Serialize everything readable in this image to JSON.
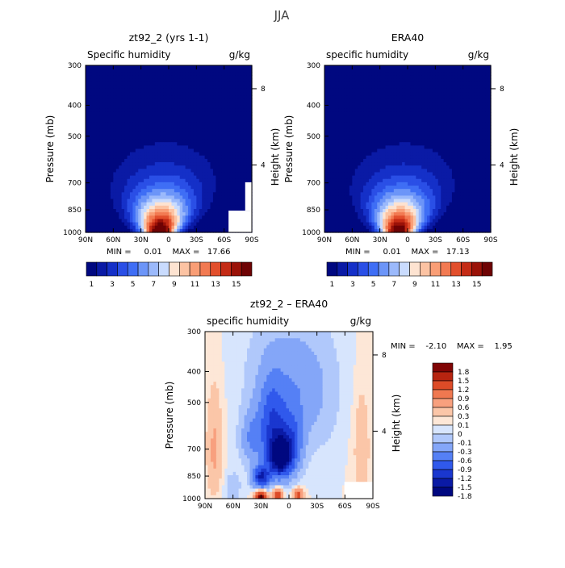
{
  "page": {
    "title": "JJA"
  },
  "colors": {
    "full_scale": [
      "#000880",
      "#0a1aa5",
      "#1530c8",
      "#2a4fe6",
      "#3f6ef5",
      "#6c95f8",
      "#9bb9fb",
      "#c9dbfd",
      "#fde3d1",
      "#fcc3a3",
      "#f99e76",
      "#f27a52",
      "#e24f2c",
      "#c42b15",
      "#9a1208",
      "#6e0304"
    ],
    "diff_scale": [
      "#000880",
      "#0a1aa5",
      "#1a37cf",
      "#3059ec",
      "#5580f5",
      "#84a6f8",
      "#b0c8fb",
      "#d7e5fd",
      "#fde7d7",
      "#fbc6a8",
      "#f8a07e",
      "#ef7850",
      "#dd4b27",
      "#b72410",
      "#800505"
    ]
  },
  "chart_data": [
    {
      "type": "heatmap",
      "title": "zt92_2 (yrs 1-1)",
      "left_label": "Specific humidity",
      "right_label": "g/kg",
      "xlabel": "",
      "ylabel": "Pressure (mb)",
      "y2label": "Height (km)",
      "x_ticks": [
        "90N",
        "60N",
        "30N",
        "0",
        "30S",
        "60S",
        "90S"
      ],
      "y_ticks": [
        "300",
        "400",
        "500",
        "700",
        "850",
        "1000"
      ],
      "y2_ticks": [
        "8",
        "4"
      ],
      "stats": "MIN =     0.01    MAX =   17.66",
      "colorbar_labels": [
        "1",
        "3",
        "5",
        "7",
        "9",
        "11",
        "13",
        "15"
      ],
      "field": {
        "peak_lat": 10,
        "peak_value": 17.66,
        "min": 0.01,
        "orographic_masking": "south polar region below 800 mb"
      }
    },
    {
      "type": "heatmap",
      "title": "ERA40",
      "left_label": "specific humidity",
      "right_label": "g/kg",
      "xlabel": "",
      "ylabel": "Pressure (mb)",
      "y2label": "Height (km)",
      "x_ticks": [
        "90N",
        "60N",
        "30N",
        "0",
        "30S",
        "60S",
        "90S"
      ],
      "y_ticks": [
        "300",
        "400",
        "500",
        "700",
        "850",
        "1000"
      ],
      "y2_ticks": [
        "8",
        "4"
      ],
      "stats": "MIN =     0.01    MAX =   17.13",
      "colorbar_labels": [
        "1",
        "3",
        "5",
        "7",
        "9",
        "11",
        "13",
        "15"
      ],
      "field": {
        "peak_lat": 10,
        "peak_value": 17.13,
        "min": 0.01
      }
    },
    {
      "type": "heatmap",
      "title": "zt92_2 – ERA40",
      "left_label": "specific humidity",
      "right_label": "g/kg",
      "xlabel": "",
      "ylabel": "Pressure (mb)",
      "y2label": "Height (km)",
      "x_ticks": [
        "90N",
        "60N",
        "30N",
        "0",
        "30S",
        "60S",
        "90S"
      ],
      "y_ticks": [
        "300",
        "400",
        "500",
        "700",
        "850",
        "1000"
      ],
      "y2_ticks": [
        "8",
        "4"
      ],
      "stats": "MIN =    -2.10    MAX =    1.95",
      "colorbar_labels": [
        "1.8",
        "1.5",
        "1.2",
        "0.9",
        "0.6",
        "0.3",
        "0.1",
        "0",
        "-0.1",
        "-0.3",
        "-0.6",
        "-0.9",
        "-1.2",
        "-1.5",
        "-1.8"
      ],
      "field": {
        "min": -2.1,
        "max": 1.95,
        "min_location": "10N, 750 mb"
      }
    }
  ]
}
